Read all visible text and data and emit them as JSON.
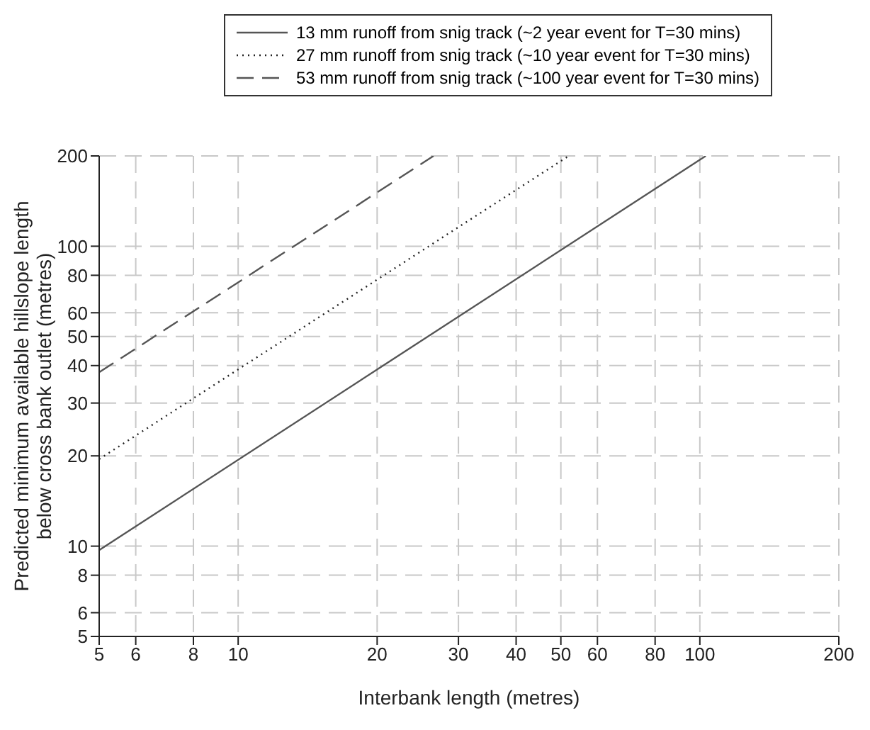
{
  "chart_data": {
    "type": "line",
    "xlabel": "Interbank length (metres)",
    "ylabel": "Predicted minimum available hillslope length\nbelow cross bank outlet (metres)",
    "log": "xy",
    "xlim": [
      5,
      200
    ],
    "ylim": [
      5,
      200
    ],
    "xticks": [
      5,
      6,
      8,
      10,
      20,
      30,
      40,
      50,
      60,
      80,
      100,
      200
    ],
    "yticks": [
      5,
      6,
      8,
      10,
      20,
      30,
      40,
      50,
      60,
      80,
      100,
      200
    ],
    "grid": true,
    "legend": "top",
    "marker": "none",
    "series": [
      {
        "name": "13 mm runoff from snig track (~2 year event for T=30 mins)",
        "color": "#555555",
        "line_style": "solid",
        "x": [
          5,
          103
        ],
        "values": [
          9.7,
          200
        ]
      },
      {
        "name": "27 mm runoff from snig track (~10 year event for T=30 mins)",
        "color": "#222222",
        "line_style": "dotted",
        "x": [
          5,
          52
        ],
        "values": [
          19.5,
          200
        ]
      },
      {
        "name": "53 mm runoff from snig track (~100 year event for T=30 mins)",
        "color": "#555555",
        "line_style": "dashed",
        "x": [
          5,
          26.5
        ],
        "values": [
          38,
          200
        ]
      }
    ]
  }
}
